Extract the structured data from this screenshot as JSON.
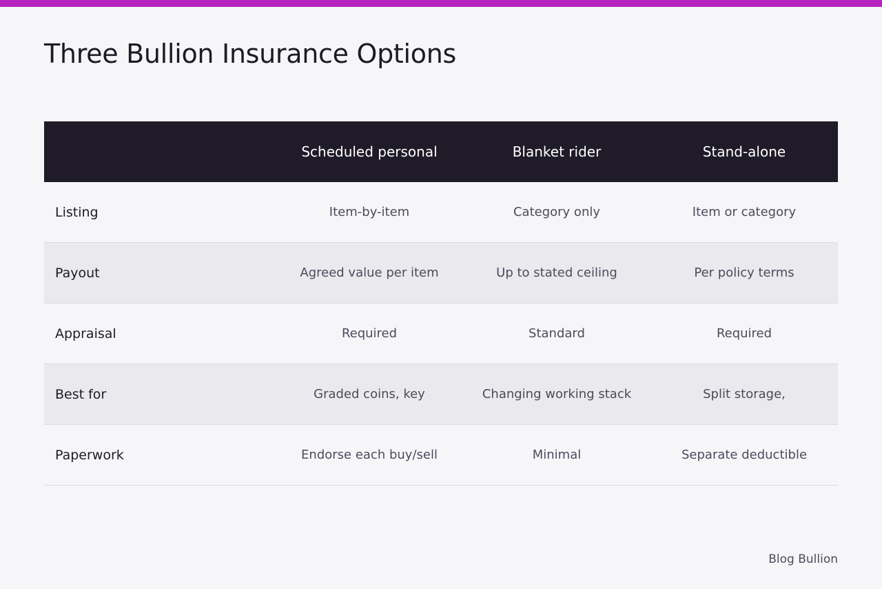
{
  "page": {
    "title": "Three Bullion Insurance Options",
    "footer": "Blog Bullion",
    "colors": {
      "accent_bar": "#b523bf",
      "header_bg": "#1f1b28",
      "background": "#f6f6f9",
      "shaded_row": "#eae9ee"
    }
  },
  "table": {
    "columns": [
      "",
      "Scheduled personal",
      "Blanket rider",
      "Stand-alone"
    ],
    "rows": [
      {
        "label": "Listing",
        "cells": [
          "Item-by-item",
          "Category only",
          "Item or category"
        ]
      },
      {
        "label": "Payout",
        "cells": [
          "Agreed value per item",
          "Up to stated ceiling",
          "Per policy terms"
        ]
      },
      {
        "label": "Appraisal",
        "cells": [
          "Required",
          "Standard",
          "Required"
        ]
      },
      {
        "label": "Best for",
        "cells": [
          "Graded coins, key",
          "Changing working stack",
          "Split storage,"
        ]
      },
      {
        "label": "Paperwork",
        "cells": [
          "Endorse each buy/sell",
          "Minimal",
          "Separate deductible"
        ]
      }
    ]
  }
}
